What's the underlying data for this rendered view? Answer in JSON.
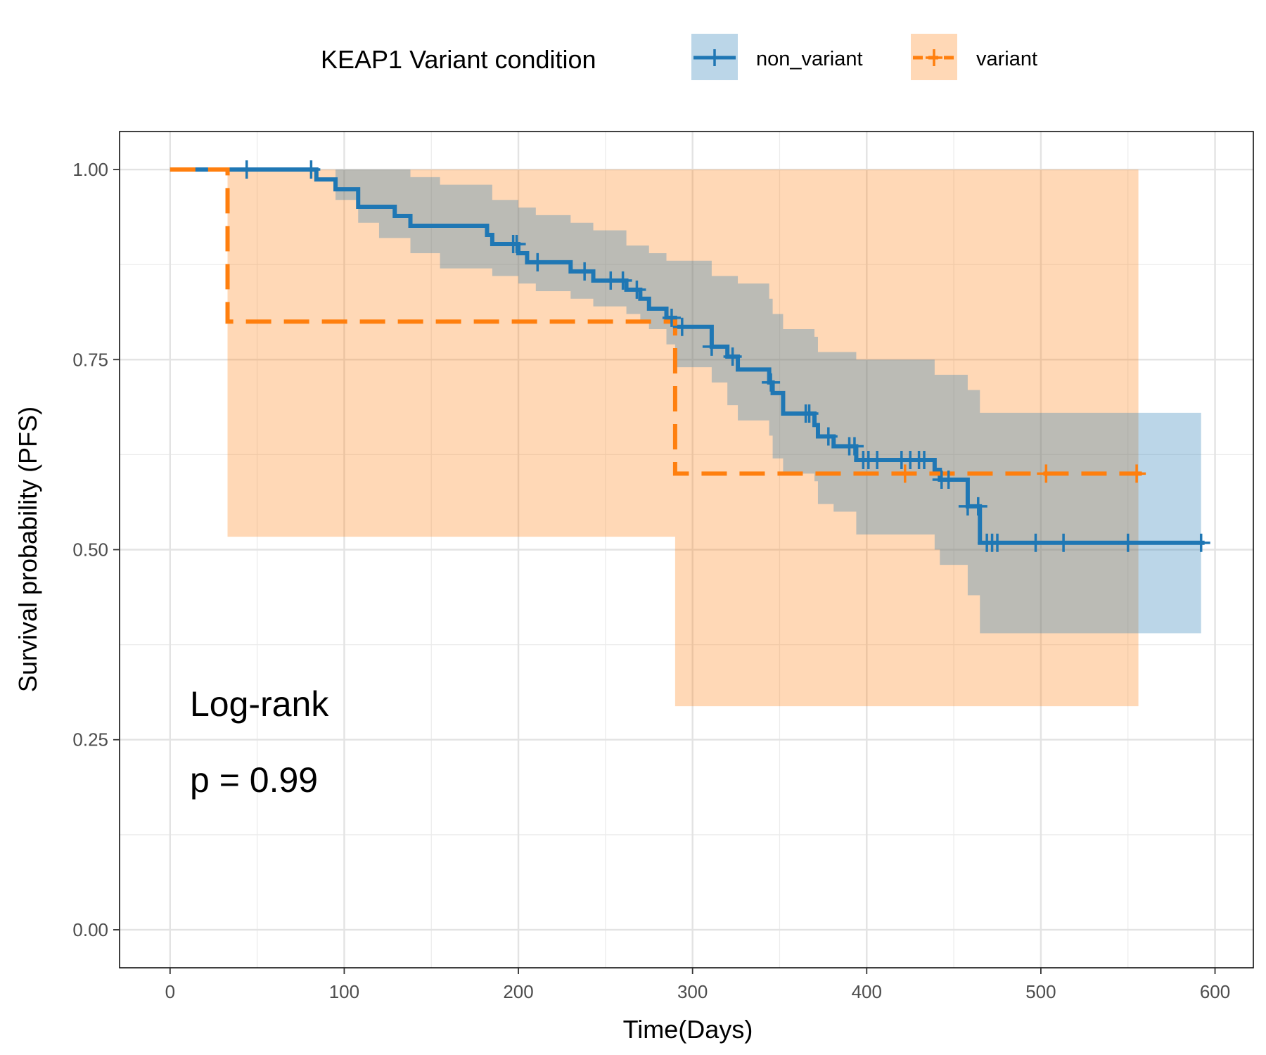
{
  "chart_data": {
    "type": "line",
    "subtype": "kaplan-meier-step",
    "legend": {
      "title": "KEAP1 Variant condition",
      "placement": "top"
    },
    "xlabel": "Time(Days)",
    "ylabel": "Survival probability (PFS)",
    "xlim": [
      -29,
      622
    ],
    "ylim": [
      -0.05,
      1.05
    ],
    "xticks": [
      0,
      100,
      200,
      300,
      400,
      500,
      600
    ],
    "xtick_labels": [
      "0",
      "100",
      "200",
      "300",
      "400",
      "500",
      "600"
    ],
    "yticks": [
      0,
      0.25,
      0.5,
      0.75,
      1.0
    ],
    "ytick_labels": [
      "0.00",
      "0.25",
      "0.50",
      "0.75",
      "1.00"
    ],
    "grid": true,
    "annotations": [
      "Log-rank",
      "p = 0.99"
    ],
    "series": [
      {
        "name": "non_variant",
        "color": "#1f77b4",
        "line_style": "solid",
        "steps": [
          [
            0,
            1.0
          ],
          [
            84,
            0.987
          ],
          [
            95,
            0.974
          ],
          [
            108,
            0.951
          ],
          [
            129,
            0.939
          ],
          [
            138,
            0.926
          ],
          [
            182,
            0.914
          ],
          [
            185,
            0.902
          ],
          [
            200,
            0.89
          ],
          [
            205,
            0.878
          ],
          [
            230,
            0.866
          ],
          [
            243,
            0.854
          ],
          [
            262,
            0.842
          ],
          [
            270,
            0.83
          ],
          [
            275,
            0.817
          ],
          [
            285,
            0.805
          ],
          [
            290,
            0.793
          ],
          [
            311,
            0.767
          ],
          [
            320,
            0.754
          ],
          [
            326,
            0.737
          ],
          [
            344,
            0.72
          ],
          [
            346,
            0.706
          ],
          [
            352,
            0.679
          ],
          [
            370,
            0.664
          ],
          [
            372,
            0.649
          ],
          [
            381,
            0.636
          ],
          [
            394,
            0.618
          ],
          [
            439,
            0.605
          ],
          [
            442,
            0.592
          ],
          [
            458,
            0.557
          ],
          [
            465,
            0.509
          ]
        ],
        "end_x": 594,
        "ci_lower": [
          [
            0,
            1.0
          ],
          [
            84,
            1.0
          ],
          [
            95,
            0.96
          ],
          [
            108,
            0.93
          ],
          [
            120,
            0.91
          ],
          [
            138,
            0.89
          ],
          [
            155,
            0.87
          ],
          [
            185,
            0.86
          ],
          [
            200,
            0.85
          ],
          [
            210,
            0.84
          ],
          [
            230,
            0.83
          ],
          [
            243,
            0.82
          ],
          [
            262,
            0.81
          ],
          [
            270,
            0.8
          ],
          [
            275,
            0.79
          ],
          [
            285,
            0.77
          ],
          [
            290,
            0.74
          ],
          [
            311,
            0.72
          ],
          [
            320,
            0.69
          ],
          [
            326,
            0.67
          ],
          [
            344,
            0.65
          ],
          [
            346,
            0.62
          ],
          [
            352,
            0.6
          ],
          [
            370,
            0.59
          ],
          [
            372,
            0.56
          ],
          [
            381,
            0.55
          ],
          [
            394,
            0.52
          ],
          [
            439,
            0.5
          ],
          [
            442,
            0.48
          ],
          [
            458,
            0.44
          ],
          [
            465,
            0.39
          ]
        ],
        "ci_upper": [
          [
            0,
            1.0
          ],
          [
            130,
            1.0
          ],
          [
            138,
            0.99
          ],
          [
            155,
            0.98
          ],
          [
            185,
            0.96
          ],
          [
            200,
            0.95
          ],
          [
            210,
            0.94
          ],
          [
            230,
            0.93
          ],
          [
            243,
            0.92
          ],
          [
            262,
            0.9
          ],
          [
            275,
            0.89
          ],
          [
            285,
            0.88
          ],
          [
            311,
            0.86
          ],
          [
            326,
            0.85
          ],
          [
            344,
            0.83
          ],
          [
            346,
            0.81
          ],
          [
            352,
            0.79
          ],
          [
            370,
            0.78
          ],
          [
            372,
            0.76
          ],
          [
            394,
            0.75
          ],
          [
            439,
            0.73
          ],
          [
            458,
            0.71
          ],
          [
            465,
            0.68
          ]
        ],
        "ci_end_x": 592,
        "censor_times": [
          44,
          81,
          197,
          199,
          211,
          238,
          253,
          260,
          268,
          288,
          294,
          311,
          323,
          345,
          365,
          367,
          378,
          390,
          393,
          398,
          401,
          406,
          420,
          425,
          430,
          433,
          443,
          447,
          458,
          464,
          469,
          472,
          475,
          497,
          513,
          550,
          592
        ]
      },
      {
        "name": "variant",
        "color": "#ff7f0e",
        "line_style": "dashed",
        "steps": [
          [
            0,
            1.0
          ],
          [
            33,
            0.8
          ],
          [
            290,
            0.6
          ]
        ],
        "end_x": 558,
        "ci_lower": [
          [
            0,
            1.0
          ],
          [
            33,
            0.517
          ],
          [
            290,
            0.294
          ]
        ],
        "ci_upper": [
          [
            0,
            1.0
          ]
        ],
        "ci_end_x": 556,
        "censor_times": [
          422,
          503,
          555
        ]
      }
    ]
  }
}
